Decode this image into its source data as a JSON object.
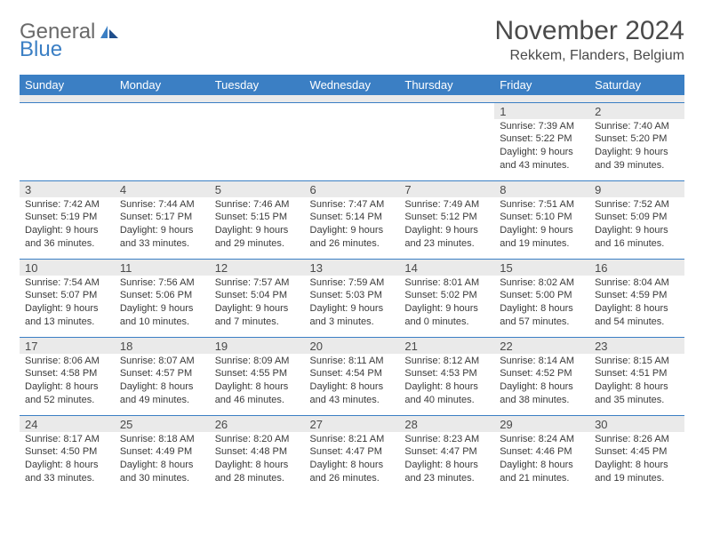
{
  "logo": {
    "top": "General",
    "bottom": "Blue"
  },
  "title": "November 2024",
  "location": "Rekkem, Flanders, Belgium",
  "colors": {
    "accent": "#3b7fc4",
    "header_bg": "#3b7fc4",
    "header_text": "#ffffff",
    "daynum_bg": "#eaeaea",
    "border": "#3b7fc4",
    "text": "#3a3a3a"
  },
  "day_headers": [
    "Sunday",
    "Monday",
    "Tuesday",
    "Wednesday",
    "Thursday",
    "Friday",
    "Saturday"
  ],
  "weeks": [
    [
      null,
      null,
      null,
      null,
      null,
      {
        "n": "1",
        "sr": "7:39 AM",
        "ss": "5:22 PM",
        "dl": "9 hours and 43 minutes."
      },
      {
        "n": "2",
        "sr": "7:40 AM",
        "ss": "5:20 PM",
        "dl": "9 hours and 39 minutes."
      }
    ],
    [
      {
        "n": "3",
        "sr": "7:42 AM",
        "ss": "5:19 PM",
        "dl": "9 hours and 36 minutes."
      },
      {
        "n": "4",
        "sr": "7:44 AM",
        "ss": "5:17 PM",
        "dl": "9 hours and 33 minutes."
      },
      {
        "n": "5",
        "sr": "7:46 AM",
        "ss": "5:15 PM",
        "dl": "9 hours and 29 minutes."
      },
      {
        "n": "6",
        "sr": "7:47 AM",
        "ss": "5:14 PM",
        "dl": "9 hours and 26 minutes."
      },
      {
        "n": "7",
        "sr": "7:49 AM",
        "ss": "5:12 PM",
        "dl": "9 hours and 23 minutes."
      },
      {
        "n": "8",
        "sr": "7:51 AM",
        "ss": "5:10 PM",
        "dl": "9 hours and 19 minutes."
      },
      {
        "n": "9",
        "sr": "7:52 AM",
        "ss": "5:09 PM",
        "dl": "9 hours and 16 minutes."
      }
    ],
    [
      {
        "n": "10",
        "sr": "7:54 AM",
        "ss": "5:07 PM",
        "dl": "9 hours and 13 minutes."
      },
      {
        "n": "11",
        "sr": "7:56 AM",
        "ss": "5:06 PM",
        "dl": "9 hours and 10 minutes."
      },
      {
        "n": "12",
        "sr": "7:57 AM",
        "ss": "5:04 PM",
        "dl": "9 hours and 7 minutes."
      },
      {
        "n": "13",
        "sr": "7:59 AM",
        "ss": "5:03 PM",
        "dl": "9 hours and 3 minutes."
      },
      {
        "n": "14",
        "sr": "8:01 AM",
        "ss": "5:02 PM",
        "dl": "9 hours and 0 minutes."
      },
      {
        "n": "15",
        "sr": "8:02 AM",
        "ss": "5:00 PM",
        "dl": "8 hours and 57 minutes."
      },
      {
        "n": "16",
        "sr": "8:04 AM",
        "ss": "4:59 PM",
        "dl": "8 hours and 54 minutes."
      }
    ],
    [
      {
        "n": "17",
        "sr": "8:06 AM",
        "ss": "4:58 PM",
        "dl": "8 hours and 52 minutes."
      },
      {
        "n": "18",
        "sr": "8:07 AM",
        "ss": "4:57 PM",
        "dl": "8 hours and 49 minutes."
      },
      {
        "n": "19",
        "sr": "8:09 AM",
        "ss": "4:55 PM",
        "dl": "8 hours and 46 minutes."
      },
      {
        "n": "20",
        "sr": "8:11 AM",
        "ss": "4:54 PM",
        "dl": "8 hours and 43 minutes."
      },
      {
        "n": "21",
        "sr": "8:12 AM",
        "ss": "4:53 PM",
        "dl": "8 hours and 40 minutes."
      },
      {
        "n": "22",
        "sr": "8:14 AM",
        "ss": "4:52 PM",
        "dl": "8 hours and 38 minutes."
      },
      {
        "n": "23",
        "sr": "8:15 AM",
        "ss": "4:51 PM",
        "dl": "8 hours and 35 minutes."
      }
    ],
    [
      {
        "n": "24",
        "sr": "8:17 AM",
        "ss": "4:50 PM",
        "dl": "8 hours and 33 minutes."
      },
      {
        "n": "25",
        "sr": "8:18 AM",
        "ss": "4:49 PM",
        "dl": "8 hours and 30 minutes."
      },
      {
        "n": "26",
        "sr": "8:20 AM",
        "ss": "4:48 PM",
        "dl": "8 hours and 28 minutes."
      },
      {
        "n": "27",
        "sr": "8:21 AM",
        "ss": "4:47 PM",
        "dl": "8 hours and 26 minutes."
      },
      {
        "n": "28",
        "sr": "8:23 AM",
        "ss": "4:47 PM",
        "dl": "8 hours and 23 minutes."
      },
      {
        "n": "29",
        "sr": "8:24 AM",
        "ss": "4:46 PM",
        "dl": "8 hours and 21 minutes."
      },
      {
        "n": "30",
        "sr": "8:26 AM",
        "ss": "4:45 PM",
        "dl": "8 hours and 19 minutes."
      }
    ]
  ],
  "labels": {
    "sunrise": "Sunrise:",
    "sunset": "Sunset:",
    "daylight": "Daylight:"
  }
}
